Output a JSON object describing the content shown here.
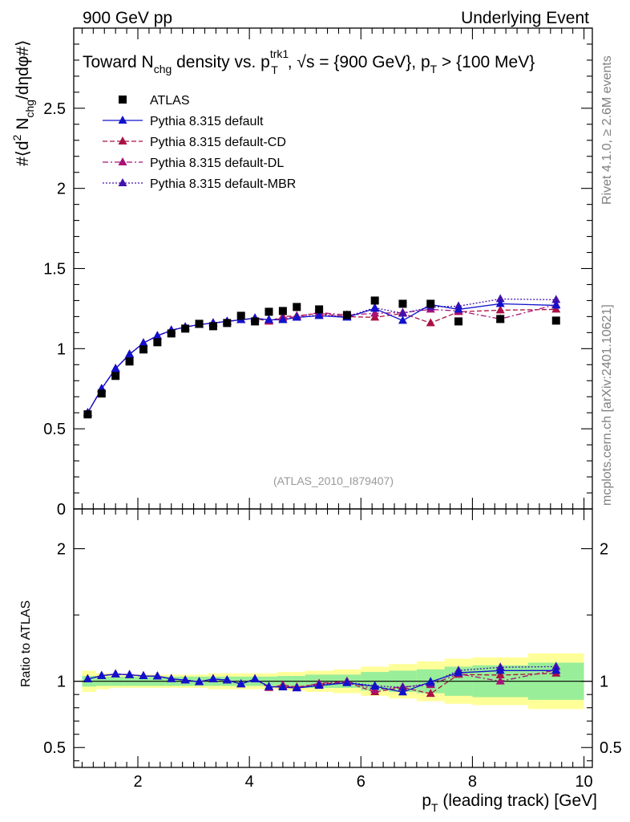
{
  "header": {
    "left": "900 GeV pp",
    "right": "Underlying Event",
    "side_top": "Rivet 4.1.0, ≥ 2.6M events",
    "side_bottom": "mcplots.cern.ch [arXiv:2401.10621]"
  },
  "chart_data": {
    "type": "scatter",
    "title": "Toward Nchg density vs. pTtrk1, √s = {900 GeV}, pT > {100 MeV}",
    "title_parts": {
      "a": "Toward N",
      "a_sub": "chg",
      "b": " density vs. p",
      "b_sup": "trk1",
      "b_sub": "T",
      "c": ", √s = {900 GeV}, p",
      "c_sub": "T",
      "d": " > {100 MeV}"
    },
    "ylabel": "#⟨d² Nchg/dηdφ#⟩",
    "ylabel_parts": {
      "a": "#⟨d",
      "a_sup": "2",
      "b": " N",
      "b_sub": "chg",
      "c": "/dηdφ#⟩"
    },
    "xlabel": "pT (leading track) [GeV]",
    "xlabel_parts": {
      "a": "p",
      "a_sub": "T",
      "b": " (leading track) [GeV]"
    },
    "ratio_ylabel": "Ratio to ATLAS",
    "watermark": "(ATLAS_2010_I879407)",
    "xlim": [
      0.85,
      10.15
    ],
    "ylim": [
      0,
      3
    ],
    "ratio_ylim": [
      0.35,
      2.3
    ],
    "x_ticks": [
      "2",
      "4",
      "6",
      "8",
      "10"
    ],
    "y_ticks": [
      "0",
      "0.5",
      "1",
      "1.5",
      "2",
      "2.5"
    ],
    "ratio_ticks": [
      "0.5",
      "1",
      "2"
    ],
    "x_centers": [
      1.1,
      1.35,
      1.6,
      1.85,
      2.1,
      2.35,
      2.6,
      2.85,
      3.1,
      3.35,
      3.6,
      3.85,
      4.1,
      4.35,
      4.6,
      4.85,
      5.25,
      5.75,
      6.25,
      6.75,
      7.25,
      7.75,
      8.5,
      9.5
    ],
    "x_bins": [
      [
        1.0,
        1.25
      ],
      [
        1.25,
        1.5
      ],
      [
        1.5,
        1.75
      ],
      [
        1.75,
        2.0
      ],
      [
        2.0,
        2.25
      ],
      [
        2.25,
        2.5
      ],
      [
        2.5,
        2.75
      ],
      [
        2.75,
        3.0
      ],
      [
        3.0,
        3.25
      ],
      [
        3.25,
        3.5
      ],
      [
        3.5,
        3.75
      ],
      [
        3.75,
        4.0
      ],
      [
        4.0,
        4.25
      ],
      [
        4.25,
        4.5
      ],
      [
        4.5,
        4.75
      ],
      [
        4.75,
        5.0
      ],
      [
        5.0,
        5.5
      ],
      [
        5.5,
        6.0
      ],
      [
        6.0,
        6.5
      ],
      [
        6.5,
        7.0
      ],
      [
        7.0,
        7.5
      ],
      [
        7.5,
        8.0
      ],
      [
        8.0,
        9.0
      ],
      [
        9.0,
        10.0
      ]
    ],
    "band_inner": [
      0.04,
      0.035,
      0.035,
      0.035,
      0.035,
      0.035,
      0.035,
      0.035,
      0.035,
      0.035,
      0.035,
      0.035,
      0.035,
      0.035,
      0.04,
      0.04,
      0.05,
      0.05,
      0.07,
      0.08,
      0.09,
      0.11,
      0.12,
      0.14
    ],
    "band_outer": [
      0.08,
      0.06,
      0.05,
      0.05,
      0.05,
      0.05,
      0.05,
      0.05,
      0.05,
      0.06,
      0.06,
      0.06,
      0.06,
      0.06,
      0.07,
      0.07,
      0.08,
      0.09,
      0.11,
      0.13,
      0.15,
      0.17,
      0.18,
      0.21
    ],
    "series": [
      {
        "name": "ATLAS",
        "color": "#000000",
        "marker": "square",
        "line": "none",
        "values": [
          0.59,
          0.72,
          0.83,
          0.92,
          0.995,
          1.04,
          1.095,
          1.125,
          1.155,
          1.14,
          1.16,
          1.205,
          1.17,
          1.23,
          1.235,
          1.26,
          1.245,
          1.21,
          1.3,
          1.28,
          1.28,
          1.17,
          1.185,
          1.175
        ]
      },
      {
        "name": "Pythia 8.315 default",
        "color": "#1111cc",
        "marker": "triangle",
        "line": "solid",
        "values": [
          0.6,
          0.75,
          0.875,
          0.965,
          1.035,
          1.08,
          1.115,
          1.135,
          1.15,
          1.16,
          1.17,
          1.18,
          1.19,
          1.18,
          1.18,
          1.195,
          1.205,
          1.195,
          1.25,
          1.175,
          1.275,
          1.245,
          1.28,
          1.27
        ]
      },
      {
        "name": "Pythia 8.315 default-CD",
        "color": "#aa1144",
        "marker": "triangle",
        "line": "dashed",
        "values": [
          0.6,
          0.75,
          0.875,
          0.965,
          1.035,
          1.08,
          1.115,
          1.135,
          1.15,
          1.16,
          1.17,
          1.18,
          1.19,
          1.17,
          1.2,
          1.205,
          1.22,
          1.2,
          1.195,
          1.22,
          1.16,
          1.23,
          1.24,
          1.245
        ]
      },
      {
        "name": "Pythia 8.315 default-DL",
        "color": "#aa1177",
        "marker": "triangle",
        "line": "dashdot",
        "values": [
          0.6,
          0.75,
          0.875,
          0.965,
          1.035,
          1.08,
          1.115,
          1.135,
          1.15,
          1.16,
          1.17,
          1.18,
          1.19,
          1.175,
          1.19,
          1.2,
          1.225,
          1.21,
          1.22,
          1.225,
          1.245,
          1.235,
          1.185,
          1.275
        ]
      },
      {
        "name": "Pythia 8.315 default-MBR",
        "color": "#4411aa",
        "marker": "triangle",
        "line": "dotted",
        "values": [
          0.6,
          0.75,
          0.875,
          0.965,
          1.035,
          1.08,
          1.115,
          1.135,
          1.15,
          1.16,
          1.17,
          1.18,
          1.19,
          1.18,
          1.18,
          1.195,
          1.21,
          1.2,
          1.255,
          1.22,
          1.26,
          1.265,
          1.31,
          1.305
        ]
      }
    ]
  }
}
